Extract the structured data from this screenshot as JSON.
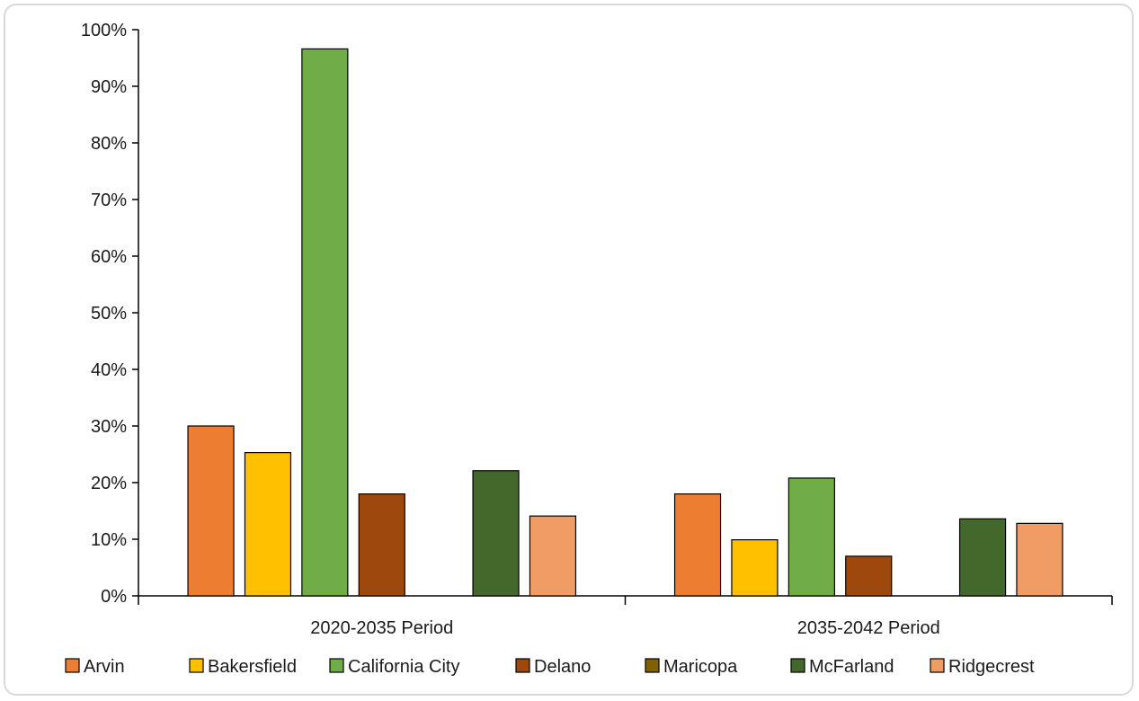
{
  "chart_data": {
    "type": "bar",
    "title": "",
    "xlabel": "",
    "ylabel": "",
    "ylim": [
      0,
      100
    ],
    "yticks": [
      "0%",
      "10%",
      "20%",
      "30%",
      "40%",
      "50%",
      "60%",
      "70%",
      "80%",
      "90%",
      "100%"
    ],
    "categories": [
      "2020-2035 Period",
      "2035-2042 Period"
    ],
    "legend_position": "bottom",
    "grid": false,
    "series": [
      {
        "name": "Arvin",
        "color": "#ed7d31",
        "values": [
          30,
          18
        ]
      },
      {
        "name": "Bakersfield",
        "color": "#ffc000",
        "values": [
          25.3,
          9.9
        ]
      },
      {
        "name": "California City",
        "color": "#70ad47",
        "values": [
          96.6,
          20.8
        ]
      },
      {
        "name": "Delano",
        "color": "#9e480e",
        "values": [
          18,
          7
        ]
      },
      {
        "name": "Maricopa",
        "color": "#806000",
        "values": [
          0,
          0
        ]
      },
      {
        "name": "McFarland",
        "color": "#43682b",
        "values": [
          22.1,
          13.6
        ]
      },
      {
        "name": "Ridgecrest",
        "color": "#f19c65",
        "values": [
          14.1,
          12.8
        ]
      }
    ]
  }
}
